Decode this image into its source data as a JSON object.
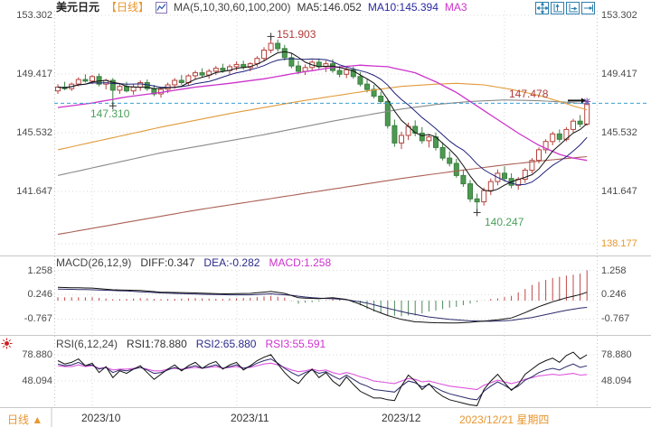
{
  "header": {
    "symbol": "美元日元",
    "period_tag": "【日线】",
    "ma_settings": "MA(5,10,30,60,100,200)",
    "ma5": "MA5:146.052",
    "ma10": "MA10:145.394",
    "ma30_truncated": "MA3"
  },
  "toolbar": {
    "icons": [
      "crosshair-move",
      "axis-zoom-vertical",
      "axis-zoom-horizontal",
      "go-to-latest"
    ]
  },
  "axes": {
    "main_left": [
      "153.302",
      "149.417",
      "145.532",
      "141.647"
    ],
    "main_right": [
      "153.302",
      "149.417",
      "145.532",
      "141.647",
      "138.177"
    ],
    "macd": [
      "1.258",
      "0.246",
      "-0.767"
    ],
    "rsi": [
      "78.880",
      "48.094"
    ]
  },
  "macd_header": {
    "title": "MACD(26,12,9)",
    "diff": "DIFF:0.347",
    "dea": "DEA:-0.282",
    "macd": "MACD:1.258"
  },
  "rsi_header": {
    "title": "RSI(6,12,24)",
    "rsi1": "RSI1:78.880",
    "rsi2": "RSI2:65.880",
    "rsi3": "RSI3:55.591"
  },
  "annotations": {
    "high": "151.903",
    "low": "140.247",
    "anchor_price": "147.310",
    "last_price": "147.478"
  },
  "footer": {
    "period": "日线",
    "period_arrow": "▲",
    "months": [
      "2023/10",
      "2023/11",
      "2023/12"
    ],
    "current": "2023/12/21 星期四"
  },
  "colors": {
    "up": "#b5433c",
    "down": "#4c9a50",
    "down_stroke": "#3c7f42",
    "ma5": "#111111",
    "ma10": "#20207a",
    "ma30": "#cc33cc",
    "ma60": "#e09b3c",
    "ma100": "#8a8a8a",
    "ma200": "#aa6055",
    "price_line": "#3a9fd0",
    "macd_red": "#c04848",
    "macd_green": "#4c8a5a",
    "rsi1": "#111111",
    "rsi2": "#2a2a6a",
    "rsi3": "#dd55dd",
    "grid": "#d9d9d9",
    "separator": "#c8c8c8",
    "marker": "#333333",
    "last_marker": "#7a4fa8"
  },
  "chart_data": {
    "type": "candlestick",
    "title": "美元日元 日线 (USD/JPY Daily)",
    "x_labels": [
      "2023/10",
      "2023/11",
      "2023/12",
      "2023/12/21"
    ],
    "y_axis_main": [
      153.302,
      149.417,
      145.532,
      141.647,
      138.177
    ],
    "current_price": 147.478,
    "anchor_price": 147.31,
    "marked_high": 151.903,
    "marked_low": 140.247,
    "candles": [
      [
        148.3,
        148.75,
        148.1,
        148.55
      ],
      [
        148.55,
        148.9,
        148.35,
        148.45
      ],
      [
        148.45,
        148.85,
        148.3,
        148.75
      ],
      [
        148.75,
        149.2,
        148.6,
        149.05
      ],
      [
        149.05,
        149.4,
        148.85,
        148.95
      ],
      [
        148.95,
        149.35,
        148.75,
        149.25
      ],
      [
        149.25,
        149.45,
        148.6,
        148.75
      ],
      [
        148.75,
        149.1,
        148.4,
        149.0
      ],
      [
        149.0,
        149.15,
        147.31,
        148.35
      ],
      [
        148.35,
        148.8,
        148.1,
        148.6
      ],
      [
        148.6,
        148.9,
        148.2,
        148.3
      ],
      [
        148.3,
        148.75,
        148.05,
        148.55
      ],
      [
        148.55,
        149.0,
        148.3,
        148.85
      ],
      [
        148.85,
        149.05,
        148.3,
        148.45
      ],
      [
        148.45,
        148.7,
        147.95,
        148.1
      ],
      [
        148.1,
        148.55,
        147.85,
        148.4
      ],
      [
        148.4,
        148.85,
        148.15,
        148.7
      ],
      [
        148.7,
        149.15,
        148.45,
        149.0
      ],
      [
        149.0,
        149.35,
        148.7,
        148.85
      ],
      [
        148.85,
        149.4,
        148.65,
        149.3
      ],
      [
        149.3,
        149.65,
        149.05,
        149.5
      ],
      [
        149.5,
        149.8,
        149.2,
        149.35
      ],
      [
        149.35,
        149.75,
        149.1,
        149.6
      ],
      [
        149.6,
        149.95,
        149.35,
        149.8
      ],
      [
        149.8,
        150.1,
        149.5,
        149.65
      ],
      [
        149.65,
        150.05,
        149.4,
        149.9
      ],
      [
        149.9,
        150.25,
        149.65,
        150.05
      ],
      [
        150.05,
        150.3,
        149.7,
        149.85
      ],
      [
        149.85,
        150.2,
        149.6,
        150.1
      ],
      [
        150.1,
        150.6,
        149.9,
        150.45
      ],
      [
        150.45,
        151.2,
        150.25,
        151.0
      ],
      [
        151.0,
        151.903,
        150.8,
        151.45
      ],
      [
        151.45,
        151.7,
        150.9,
        151.1
      ],
      [
        151.1,
        151.35,
        150.3,
        150.5
      ],
      [
        150.5,
        150.8,
        149.8,
        149.95
      ],
      [
        149.95,
        150.3,
        149.4,
        149.6
      ],
      [
        149.6,
        150.05,
        149.35,
        149.85
      ],
      [
        149.85,
        150.35,
        149.6,
        150.2
      ],
      [
        150.2,
        150.45,
        149.7,
        149.9
      ],
      [
        149.9,
        150.3,
        149.55,
        150.1
      ],
      [
        150.1,
        150.4,
        149.5,
        149.65
      ],
      [
        149.65,
        149.95,
        149.2,
        149.4
      ],
      [
        149.4,
        149.85,
        149.15,
        149.7
      ],
      [
        149.7,
        149.9,
        149.1,
        149.25
      ],
      [
        149.25,
        149.55,
        148.6,
        148.75
      ],
      [
        148.75,
        149.1,
        148.2,
        148.4
      ],
      [
        148.4,
        148.7,
        147.8,
        147.95
      ],
      [
        147.95,
        148.25,
        147.45,
        147.6
      ],
      [
        147.6,
        147.75,
        145.8,
        146.0
      ],
      [
        146.0,
        146.4,
        144.6,
        144.85
      ],
      [
        144.85,
        145.6,
        144.45,
        145.35
      ],
      [
        145.35,
        146.2,
        145.05,
        145.95
      ],
      [
        145.95,
        146.35,
        145.3,
        145.5
      ],
      [
        145.5,
        145.9,
        144.8,
        145.0
      ],
      [
        145.0,
        145.45,
        144.55,
        145.25
      ],
      [
        145.25,
        145.55,
        144.35,
        144.55
      ],
      [
        144.55,
        144.9,
        143.7,
        143.85
      ],
      [
        143.85,
        144.3,
        143.3,
        143.5
      ],
      [
        143.5,
        143.8,
        142.55,
        142.7
      ],
      [
        142.7,
        143.1,
        141.95,
        142.15
      ],
      [
        142.15,
        142.4,
        140.95,
        141.15
      ],
      [
        141.15,
        141.5,
        140.247,
        140.95
      ],
      [
        140.95,
        141.9,
        140.7,
        141.7
      ],
      [
        141.7,
        142.5,
        141.4,
        142.3
      ],
      [
        142.3,
        143.1,
        142.05,
        142.85
      ],
      [
        142.85,
        143.3,
        142.3,
        142.5
      ],
      [
        142.5,
        142.85,
        141.85,
        142.05
      ],
      [
        142.05,
        142.6,
        141.75,
        142.45
      ],
      [
        142.45,
        143.2,
        142.2,
        143.05
      ],
      [
        143.05,
        143.85,
        142.85,
        143.7
      ],
      [
        143.7,
        144.55,
        143.5,
        144.4
      ],
      [
        144.4,
        145.1,
        144.15,
        144.95
      ],
      [
        144.95,
        145.6,
        144.7,
        145.45
      ],
      [
        145.45,
        145.75,
        144.9,
        145.1
      ],
      [
        145.1,
        145.9,
        144.95,
        145.75
      ],
      [
        145.75,
        146.45,
        145.55,
        146.3
      ],
      [
        146.3,
        146.7,
        145.9,
        146.1
      ],
      [
        146.1,
        147.478,
        146.0,
        147.4
      ]
    ],
    "overlays": {
      "ma30": [
        [
          0,
          147.2
        ],
        [
          5,
          147.5
        ],
        [
          10,
          147.9
        ],
        [
          15,
          148.2
        ],
        [
          20,
          148.55
        ],
        [
          25,
          148.8
        ],
        [
          30,
          149.1
        ],
        [
          35,
          149.5
        ],
        [
          40,
          149.85
        ],
        [
          44,
          150.0
        ],
        [
          48,
          149.9
        ],
        [
          52,
          149.5
        ],
        [
          55,
          148.9
        ],
        [
          58,
          148.2
        ],
        [
          61,
          147.3
        ],
        [
          64,
          146.4
        ],
        [
          67,
          145.5
        ],
        [
          70,
          144.7
        ],
        [
          73,
          144.1
        ],
        [
          75,
          143.85
        ],
        [
          77,
          143.7
        ]
      ],
      "ma60": [
        [
          0,
          144.4
        ],
        [
          5,
          144.9
        ],
        [
          10,
          145.4
        ],
        [
          15,
          145.9
        ],
        [
          20,
          146.35
        ],
        [
          25,
          146.8
        ],
        [
          30,
          147.2
        ],
        [
          35,
          147.6
        ],
        [
          40,
          147.95
        ],
        [
          45,
          148.3
        ],
        [
          50,
          148.6
        ],
        [
          55,
          148.75
        ],
        [
          58,
          148.8
        ],
        [
          62,
          148.7
        ],
        [
          66,
          148.4
        ],
        [
          70,
          148.0
        ],
        [
          73,
          147.6
        ],
        [
          75,
          147.3
        ],
        [
          77,
          147.05
        ]
      ],
      "ma100": [
        [
          0,
          142.7
        ],
        [
          5,
          143.2
        ],
        [
          10,
          143.7
        ],
        [
          15,
          144.2
        ],
        [
          20,
          144.6
        ],
        [
          25,
          145.0
        ],
        [
          30,
          145.4
        ],
        [
          35,
          145.85
        ],
        [
          40,
          146.3
        ],
        [
          45,
          146.7
        ],
        [
          50,
          147.1
        ],
        [
          55,
          147.4
        ],
        [
          60,
          147.6
        ],
        [
          65,
          147.7
        ],
        [
          70,
          147.65
        ],
        [
          74,
          147.55
        ],
        [
          77,
          147.45
        ]
      ],
      "ma200": [
        [
          0,
          138.8
        ],
        [
          10,
          139.6
        ],
        [
          20,
          140.4
        ],
        [
          30,
          141.1
        ],
        [
          40,
          141.8
        ],
        [
          50,
          142.5
        ],
        [
          58,
          143.0
        ],
        [
          65,
          143.4
        ],
        [
          71,
          143.7
        ],
        [
          77,
          143.95
        ]
      ]
    },
    "macd": {
      "params": [
        26,
        12,
        9
      ],
      "diff_end": 0.347,
      "dea_end": -0.282,
      "hist_end": 1.258,
      "axis": [
        1.258,
        0.246,
        -0.767
      ],
      "diff_points": [
        [
          0,
          0.55
        ],
        [
          5,
          0.52
        ],
        [
          8,
          0.45
        ],
        [
          12,
          0.42
        ],
        [
          15,
          0.35
        ],
        [
          20,
          0.32
        ],
        [
          24,
          0.28
        ],
        [
          28,
          0.3
        ],
        [
          31,
          0.38
        ],
        [
          33,
          0.3
        ],
        [
          35,
          0.12
        ],
        [
          38,
          0.08
        ],
        [
          40,
          0.12
        ],
        [
          42,
          0.05
        ],
        [
          44,
          -0.15
        ],
        [
          46,
          -0.4
        ],
        [
          48,
          -0.62
        ],
        [
          50,
          -0.78
        ],
        [
          52,
          -0.88
        ],
        [
          55,
          -0.92
        ],
        [
          58,
          -0.93
        ],
        [
          60,
          -0.9
        ],
        [
          62,
          -0.85
        ],
        [
          64,
          -0.8
        ],
        [
          66,
          -0.72
        ],
        [
          68,
          -0.5
        ],
        [
          70,
          -0.25
        ],
        [
          72,
          -0.05
        ],
        [
          74,
          0.12
        ],
        [
          76,
          0.25
        ],
        [
          77,
          0.347
        ]
      ],
      "dea_points": [
        [
          0,
          0.48
        ],
        [
          5,
          0.45
        ],
        [
          10,
          0.4
        ],
        [
          15,
          0.32
        ],
        [
          20,
          0.27
        ],
        [
          25,
          0.24
        ],
        [
          28,
          0.24
        ],
        [
          31,
          0.28
        ],
        [
          34,
          0.22
        ],
        [
          36,
          0.15
        ],
        [
          38,
          0.1
        ],
        [
          40,
          0.08
        ],
        [
          42,
          0.04
        ],
        [
          45,
          -0.1
        ],
        [
          48,
          -0.32
        ],
        [
          51,
          -0.52
        ],
        [
          54,
          -0.68
        ],
        [
          57,
          -0.78
        ],
        [
          60,
          -0.84
        ],
        [
          63,
          -0.86
        ],
        [
          66,
          -0.82
        ],
        [
          69,
          -0.7
        ],
        [
          72,
          -0.52
        ],
        [
          74,
          -0.4
        ],
        [
          76,
          -0.31
        ],
        [
          77,
          -0.282
        ]
      ]
    },
    "rsi": {
      "params": [
        6,
        12,
        24
      ],
      "axis": [
        78.88,
        48.094
      ],
      "rsi1": [
        72,
        68,
        70,
        74,
        66,
        69,
        58,
        65,
        52,
        60,
        57,
        62,
        66,
        58,
        50,
        56,
        62,
        67,
        60,
        66,
        70,
        63,
        68,
        71,
        62,
        67,
        70,
        61,
        66,
        72,
        76,
        79,
        68,
        58,
        50,
        45,
        55,
        62,
        52,
        58,
        48,
        42,
        53,
        44,
        36,
        32,
        28,
        28,
        26,
        25,
        42,
        55,
        48,
        38,
        45,
        36,
        30,
        26,
        24,
        22,
        20,
        19,
        38,
        48,
        56,
        46,
        37,
        44,
        56,
        62,
        68,
        72,
        75,
        70,
        78,
        82,
        74,
        78.88
      ],
      "rsi2": [
        68,
        66,
        67,
        70,
        66,
        67,
        62,
        64,
        58,
        61,
        60,
        62,
        64,
        61,
        57,
        58,
        61,
        64,
        61,
        64,
        66,
        63,
        65,
        67,
        63,
        65,
        67,
        63,
        65,
        69,
        72,
        74,
        69,
        63,
        58,
        54,
        58,
        61,
        57,
        59,
        54,
        50,
        55,
        50,
        45,
        42,
        38,
        37,
        36,
        35,
        42,
        48,
        46,
        41,
        44,
        40,
        36,
        33,
        31,
        29,
        27,
        26,
        36,
        42,
        47,
        43,
        38,
        42,
        49,
        53,
        58,
        61,
        63,
        61,
        65,
        68,
        64,
        65.88
      ],
      "rsi3": [
        66,
        65,
        65,
        67,
        65,
        66,
        63,
        64,
        61,
        62,
        62,
        63,
        64,
        62,
        60,
        60,
        62,
        63,
        62,
        63,
        64,
        63,
        64,
        65,
        63,
        64,
        65,
        63,
        64,
        66,
        68,
        69,
        67,
        64,
        61,
        59,
        60,
        62,
        60,
        61,
        58,
        56,
        58,
        56,
        53,
        51,
        48,
        47,
        46,
        45,
        48,
        51,
        50,
        47,
        48,
        46,
        44,
        42,
        41,
        40,
        39,
        38,
        43,
        46,
        49,
        47,
        45,
        47,
        50,
        52,
        54,
        55,
        56,
        55,
        56,
        57,
        55,
        55.591
      ]
    }
  }
}
